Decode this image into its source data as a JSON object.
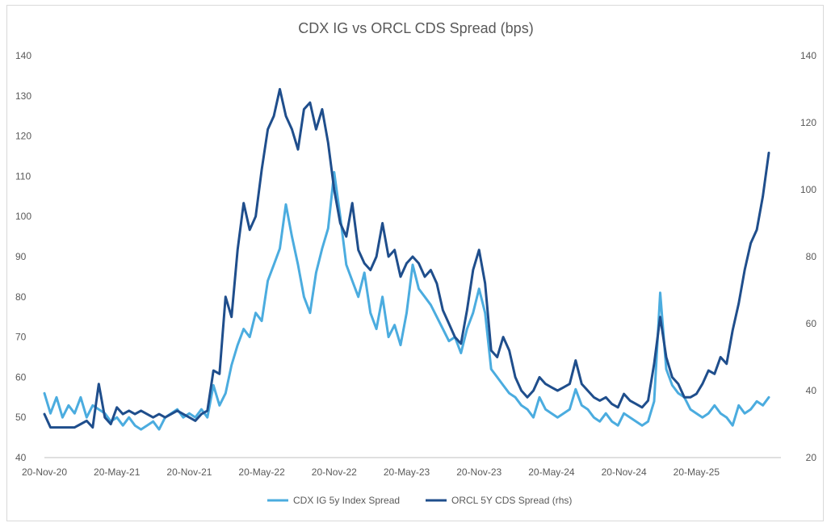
{
  "chart_data": {
    "type": "line",
    "title": "CDX IG vs ORCL CDS Spread (bps)",
    "x_labels": [
      "20-Nov-20",
      "20-May-21",
      "20-Nov-21",
      "20-May-22",
      "20-Nov-22",
      "20-May-23",
      "20-Nov-23",
      "20-May-24",
      "20-Nov-24",
      "20-May-25"
    ],
    "x_range_months": [
      0,
      61
    ],
    "y_left": {
      "range": [
        40,
        140
      ],
      "ticks": [
        "40",
        "50",
        "60",
        "70",
        "80",
        "90",
        "100",
        "110",
        "120",
        "130",
        "140"
      ]
    },
    "y_right": {
      "range": [
        20,
        140
      ],
      "ticks": [
        "20",
        "40",
        "60",
        "80",
        "100",
        "120",
        "140"
      ]
    },
    "legend_position": "bottom",
    "series": [
      {
        "name": "CDX IG 5y Index Spread",
        "axis": "left",
        "color": "#4bacdf",
        "points": [
          [
            0,
            56
          ],
          [
            0.5,
            51
          ],
          [
            1,
            55
          ],
          [
            1.5,
            50
          ],
          [
            2,
            53
          ],
          [
            2.5,
            51
          ],
          [
            3,
            55
          ],
          [
            3.5,
            50
          ],
          [
            4,
            53
          ],
          [
            4.5,
            52
          ],
          [
            5,
            51
          ],
          [
            5.5,
            49
          ],
          [
            6,
            50
          ],
          [
            6.5,
            48
          ],
          [
            7,
            50
          ],
          [
            7.5,
            48
          ],
          [
            8,
            47
          ],
          [
            8.5,
            48
          ],
          [
            9,
            49
          ],
          [
            9.5,
            47
          ],
          [
            10,
            50
          ],
          [
            10.5,
            51
          ],
          [
            11,
            52
          ],
          [
            11.5,
            50
          ],
          [
            12,
            51
          ],
          [
            12.5,
            50
          ],
          [
            13,
            52
          ],
          [
            13.5,
            50
          ],
          [
            14,
            58
          ],
          [
            14.5,
            53
          ],
          [
            15,
            56
          ],
          [
            15.5,
            63
          ],
          [
            16,
            68
          ],
          [
            16.5,
            72
          ],
          [
            17,
            70
          ],
          [
            17.5,
            76
          ],
          [
            18,
            74
          ],
          [
            18.5,
            84
          ],
          [
            19,
            88
          ],
          [
            19.5,
            92
          ],
          [
            20,
            103
          ],
          [
            20.5,
            95
          ],
          [
            21,
            88
          ],
          [
            21.5,
            80
          ],
          [
            22,
            76
          ],
          [
            22.5,
            86
          ],
          [
            23,
            92
          ],
          [
            23.5,
            97
          ],
          [
            24,
            111
          ],
          [
            24.5,
            100
          ],
          [
            25,
            88
          ],
          [
            25.5,
            84
          ],
          [
            26,
            80
          ],
          [
            26.5,
            86
          ],
          [
            27,
            76
          ],
          [
            27.5,
            72
          ],
          [
            28,
            80
          ],
          [
            28.5,
            70
          ],
          [
            29,
            73
          ],
          [
            29.5,
            68
          ],
          [
            30,
            76
          ],
          [
            30.5,
            88
          ],
          [
            31,
            82
          ],
          [
            31.5,
            80
          ],
          [
            32,
            78
          ],
          [
            32.5,
            75
          ],
          [
            33,
            72
          ],
          [
            33.5,
            69
          ],
          [
            34,
            70
          ],
          [
            34.5,
            66
          ],
          [
            35,
            72
          ],
          [
            35.5,
            76
          ],
          [
            36,
            82
          ],
          [
            36.5,
            76
          ],
          [
            37,
            62
          ],
          [
            37.5,
            60
          ],
          [
            38,
            58
          ],
          [
            38.5,
            56
          ],
          [
            39,
            55
          ],
          [
            39.5,
            53
          ],
          [
            40,
            52
          ],
          [
            40.5,
            50
          ],
          [
            41,
            55
          ],
          [
            41.5,
            52
          ],
          [
            42,
            51
          ],
          [
            42.5,
            50
          ],
          [
            43,
            51
          ],
          [
            43.5,
            52
          ],
          [
            44,
            57
          ],
          [
            44.5,
            53
          ],
          [
            45,
            52
          ],
          [
            45.5,
            50
          ],
          [
            46,
            49
          ],
          [
            46.5,
            51
          ],
          [
            47,
            49
          ],
          [
            47.5,
            48
          ],
          [
            48,
            51
          ],
          [
            48.5,
            50
          ],
          [
            49,
            49
          ],
          [
            49.5,
            48
          ],
          [
            50,
            49
          ],
          [
            50.5,
            54
          ],
          [
            51,
            81
          ],
          [
            51.5,
            62
          ],
          [
            52,
            58
          ],
          [
            52.5,
            56
          ],
          [
            53,
            55
          ],
          [
            53.5,
            52
          ],
          [
            54,
            51
          ],
          [
            54.5,
            50
          ],
          [
            55,
            51
          ],
          [
            55.5,
            53
          ],
          [
            56,
            51
          ],
          [
            56.5,
            50
          ],
          [
            57,
            48
          ],
          [
            57.5,
            53
          ],
          [
            58,
            51
          ],
          [
            58.5,
            52
          ],
          [
            59,
            54
          ],
          [
            59.5,
            53
          ],
          [
            60,
            55
          ]
        ]
      },
      {
        "name": "ORCL 5Y CDS Spread (rhs)",
        "axis": "right",
        "color": "#1f4e8c",
        "points": [
          [
            0,
            33
          ],
          [
            0.5,
            29
          ],
          [
            1,
            29
          ],
          [
            1.5,
            29
          ],
          [
            2,
            29
          ],
          [
            2.5,
            29
          ],
          [
            3,
            30
          ],
          [
            3.5,
            31
          ],
          [
            4,
            29
          ],
          [
            4.5,
            42
          ],
          [
            5,
            32
          ],
          [
            5.5,
            30
          ],
          [
            6,
            35
          ],
          [
            6.5,
            33
          ],
          [
            7,
            34
          ],
          [
            7.5,
            33
          ],
          [
            8,
            34
          ],
          [
            8.5,
            33
          ],
          [
            9,
            32
          ],
          [
            9.5,
            33
          ],
          [
            10,
            32
          ],
          [
            10.5,
            33
          ],
          [
            11,
            34
          ],
          [
            11.5,
            33
          ],
          [
            12,
            32
          ],
          [
            12.5,
            31
          ],
          [
            13,
            33
          ],
          [
            13.5,
            34
          ],
          [
            14,
            46
          ],
          [
            14.5,
            45
          ],
          [
            15,
            68
          ],
          [
            15.5,
            62
          ],
          [
            16,
            82
          ],
          [
            16.5,
            96
          ],
          [
            17,
            88
          ],
          [
            17.5,
            92
          ],
          [
            18,
            106
          ],
          [
            18.5,
            118
          ],
          [
            19,
            122
          ],
          [
            19.5,
            130
          ],
          [
            20,
            122
          ],
          [
            20.5,
            118
          ],
          [
            21,
            112
          ],
          [
            21.5,
            124
          ],
          [
            22,
            126
          ],
          [
            22.5,
            118
          ],
          [
            23,
            124
          ],
          [
            23.5,
            114
          ],
          [
            24,
            100
          ],
          [
            24.5,
            90
          ],
          [
            25,
            86
          ],
          [
            25.5,
            96
          ],
          [
            26,
            82
          ],
          [
            26.5,
            78
          ],
          [
            27,
            76
          ],
          [
            27.5,
            80
          ],
          [
            28,
            90
          ],
          [
            28.5,
            80
          ],
          [
            29,
            82
          ],
          [
            29.5,
            74
          ],
          [
            30,
            78
          ],
          [
            30.5,
            80
          ],
          [
            31,
            78
          ],
          [
            31.5,
            74
          ],
          [
            32,
            76
          ],
          [
            32.5,
            72
          ],
          [
            33,
            64
          ],
          [
            33.5,
            60
          ],
          [
            34,
            56
          ],
          [
            34.5,
            54
          ],
          [
            35,
            64
          ],
          [
            35.5,
            76
          ],
          [
            36,
            82
          ],
          [
            36.5,
            72
          ],
          [
            37,
            52
          ],
          [
            37.5,
            50
          ],
          [
            38,
            56
          ],
          [
            38.5,
            52
          ],
          [
            39,
            44
          ],
          [
            39.5,
            40
          ],
          [
            40,
            38
          ],
          [
            40.5,
            40
          ],
          [
            41,
            44
          ],
          [
            41.5,
            42
          ],
          [
            42,
            41
          ],
          [
            42.5,
            40
          ],
          [
            43,
            41
          ],
          [
            43.5,
            42
          ],
          [
            44,
            49
          ],
          [
            44.5,
            42
          ],
          [
            45,
            40
          ],
          [
            45.5,
            38
          ],
          [
            46,
            37
          ],
          [
            46.5,
            38
          ],
          [
            47,
            36
          ],
          [
            47.5,
            35
          ],
          [
            48,
            39
          ],
          [
            48.5,
            37
          ],
          [
            49,
            36
          ],
          [
            49.5,
            35
          ],
          [
            50,
            37
          ],
          [
            50.5,
            48
          ],
          [
            51,
            62
          ],
          [
            51.5,
            50
          ],
          [
            52,
            44
          ],
          [
            52.5,
            42
          ],
          [
            53,
            38
          ],
          [
            53.5,
            38
          ],
          [
            54,
            39
          ],
          [
            54.5,
            42
          ],
          [
            55,
            46
          ],
          [
            55.5,
            45
          ],
          [
            56,
            50
          ],
          [
            56.5,
            48
          ],
          [
            57,
            58
          ],
          [
            57.5,
            66
          ],
          [
            58,
            76
          ],
          [
            58.5,
            84
          ],
          [
            59,
            88
          ],
          [
            59.5,
            98
          ],
          [
            60,
            111
          ]
        ]
      }
    ]
  }
}
